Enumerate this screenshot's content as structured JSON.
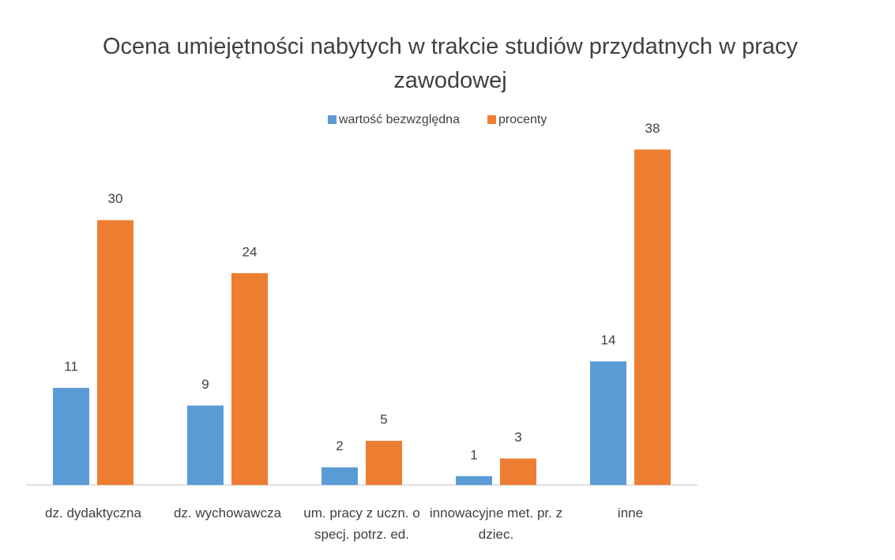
{
  "chart_data": {
    "type": "bar",
    "title": "Ocena umiejętności nabytych w trakcie studiów przydatnych w pracy zawodowej",
    "categories": [
      "dz. dydaktyczna",
      "dz. wychowawcza",
      "um. pracy z uczn. o specj. potrz. ed.",
      "innowacyjne met. pr. z dziec.",
      "inne"
    ],
    "series": [
      {
        "name": "wartość bezwzględna",
        "color": "#5b9bd5",
        "values": [
          11,
          9,
          2,
          1,
          14
        ]
      },
      {
        "name": "procenty",
        "color": "#ed7d31",
        "values": [
          30,
          24,
          5,
          3,
          38
        ]
      }
    ],
    "ylim": [
      0,
      40
    ],
    "legend": "top"
  }
}
